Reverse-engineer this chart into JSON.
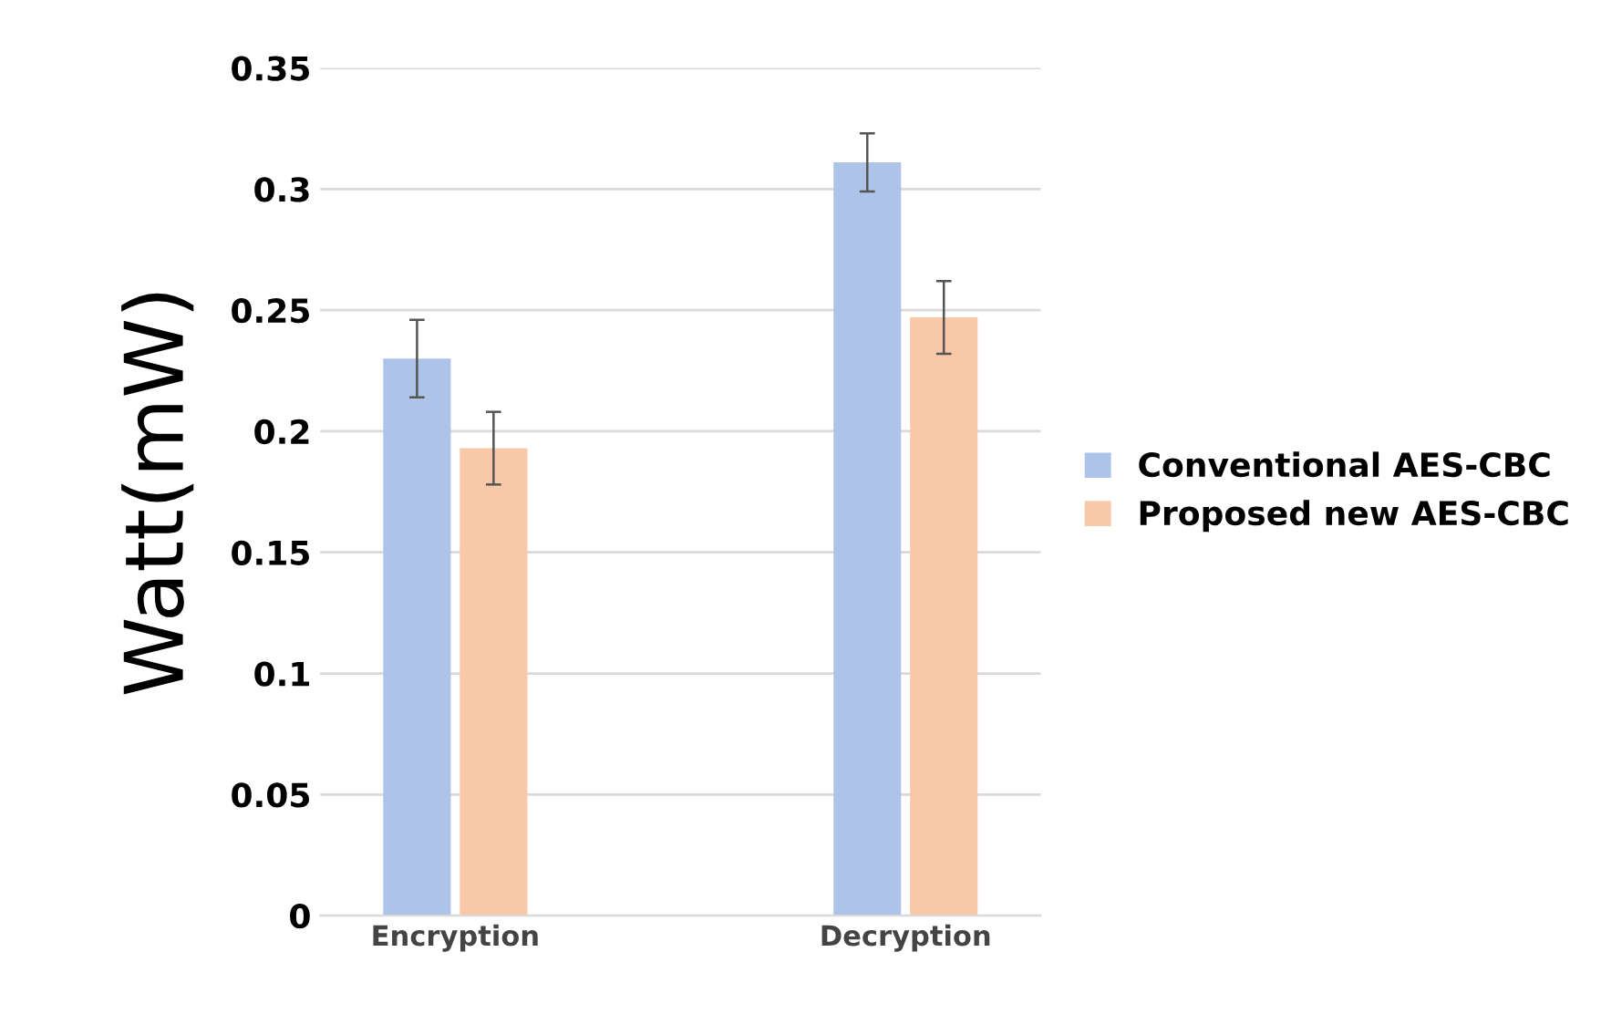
{
  "chart_data": {
    "type": "bar",
    "ylabel": "Watt(mW)",
    "categories": [
      "Encryption",
      "Decryption"
    ],
    "series": [
      {
        "name": "Conventional AES-CBC",
        "color": "#aec3e8",
        "values": [
          0.23,
          0.311
        ],
        "errors": [
          0.016,
          0.012
        ]
      },
      {
        "name": "Proposed new AES-CBC",
        "color": "#f9c8a8",
        "values": [
          0.193,
          0.247
        ],
        "errors": [
          0.015,
          0.015
        ]
      }
    ],
    "ylim": [
      0,
      0.35
    ],
    "yticks": [
      0,
      0.05,
      0.1,
      0.15,
      0.2,
      0.25,
      0.3,
      0.35
    ],
    "grid": "y",
    "legend": "right"
  }
}
